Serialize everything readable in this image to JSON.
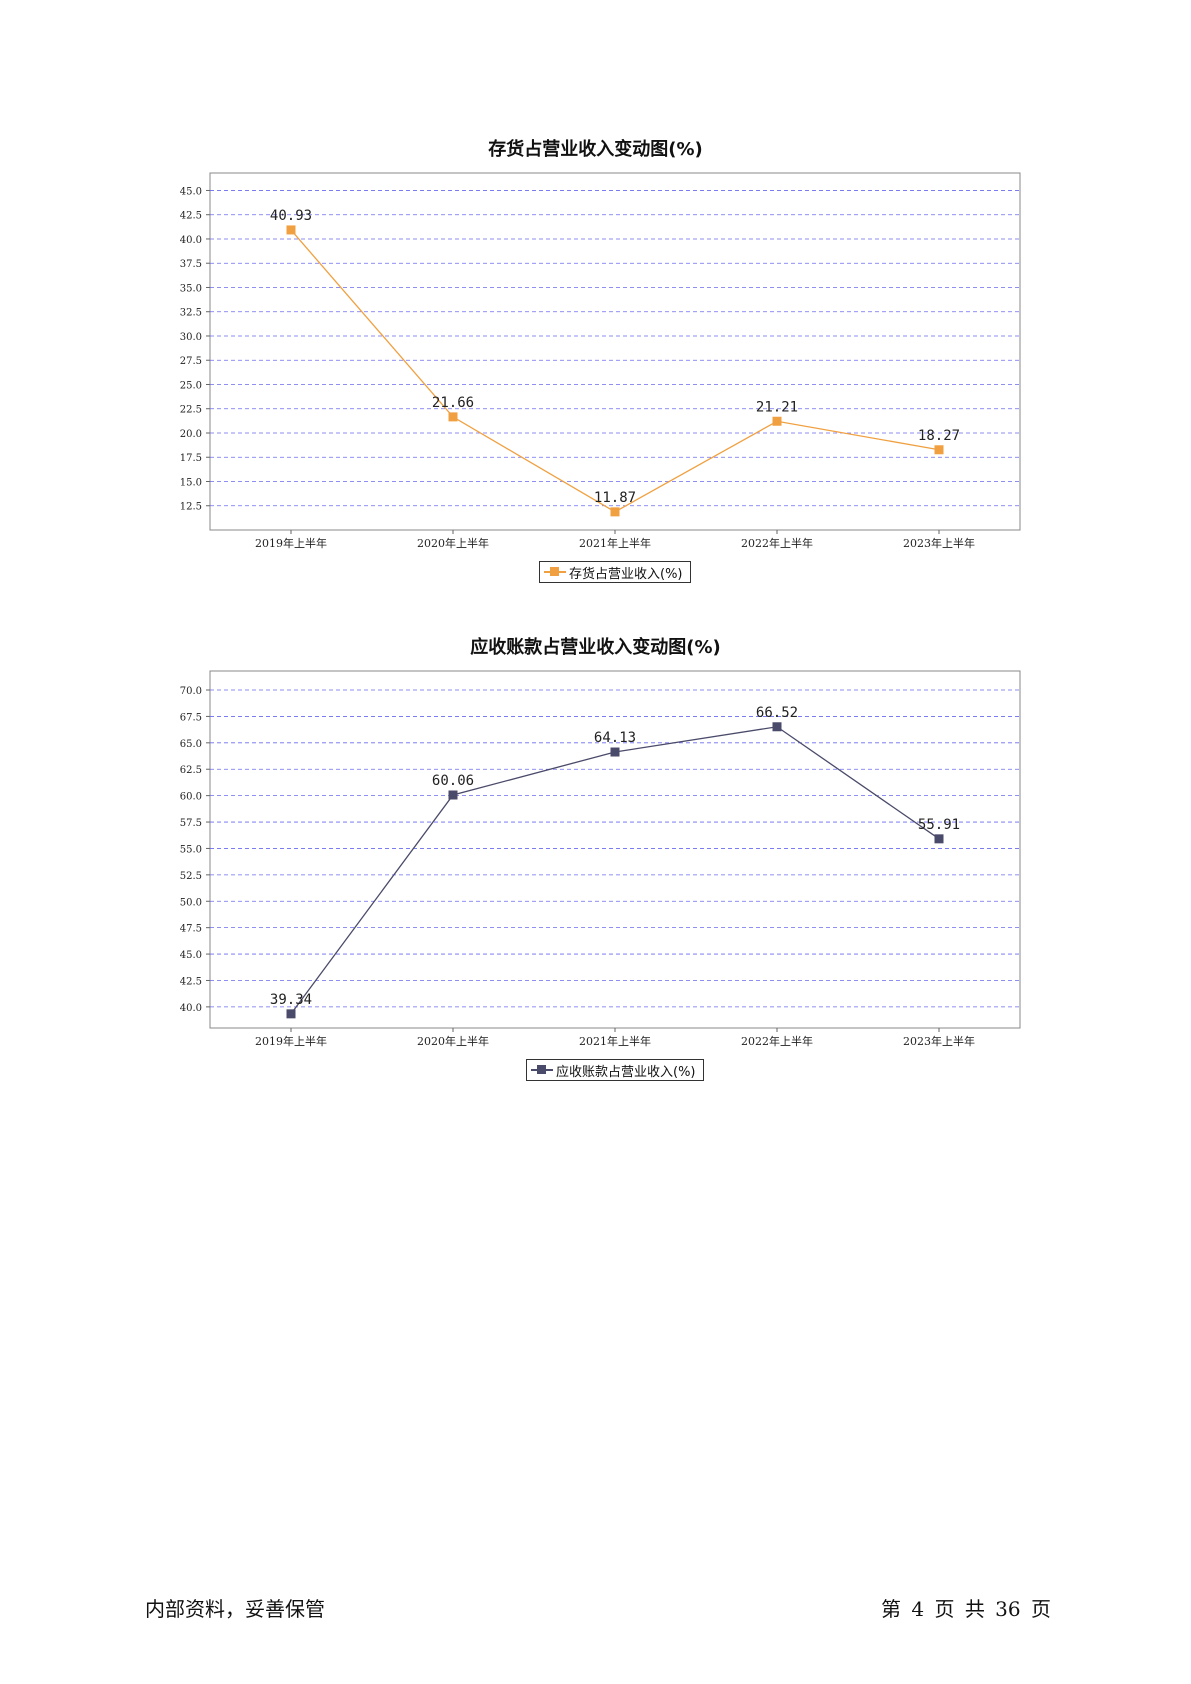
{
  "footer": {
    "left": "内部资料，妥善保管",
    "right": "第 4 页  共 36 页"
  },
  "chart_data": [
    {
      "type": "line",
      "title": "存货占营业收入变动图(%)",
      "xlabel": "",
      "ylabel": "",
      "categories": [
        "2019年上半年",
        "2020年上半年",
        "2021年上半年",
        "2022年上半年",
        "2023年上半年"
      ],
      "series": [
        {
          "name": "存货占营业收入(%)",
          "values": [
            40.93,
            21.66,
            11.87,
            21.21,
            18.27
          ],
          "color": "#f0a040",
          "data_labels": [
            "40.93",
            "21.66",
            "11.87",
            "21.21",
            "18.27"
          ]
        }
      ],
      "yticks": [
        "12.5",
        "15.0",
        "17.5",
        "20.0",
        "22.5",
        "25.0",
        "27.5",
        "30.0",
        "32.5",
        "35.0",
        "37.5",
        "40.0",
        "42.5",
        "45.0"
      ],
      "ylim": [
        10.0,
        46.8
      ],
      "grid": true,
      "grid_color": "#6a6af0",
      "legend_position": "bottom-center"
    },
    {
      "type": "line",
      "title": "应收账款占营业收入变动图(%)",
      "xlabel": "",
      "ylabel": "",
      "categories": [
        "2019年上半年",
        "2020年上半年",
        "2021年上半年",
        "2022年上半年",
        "2023年上半年"
      ],
      "series": [
        {
          "name": "应收账款占营业收入(%)",
          "values": [
            39.34,
            60.06,
            64.13,
            66.52,
            55.91
          ],
          "color": "#4a4a6a",
          "data_labels": [
            "39.34",
            "60.06",
            "64.13",
            "66.52",
            "55.91"
          ]
        }
      ],
      "yticks": [
        "40.0",
        "42.5",
        "45.0",
        "47.5",
        "50.0",
        "52.5",
        "55.0",
        "57.5",
        "60.0",
        "62.5",
        "65.0",
        "67.5",
        "70.0"
      ],
      "ylim": [
        38.0,
        71.8
      ],
      "grid": true,
      "grid_color": "#6a6af0",
      "legend_position": "bottom-center"
    }
  ]
}
